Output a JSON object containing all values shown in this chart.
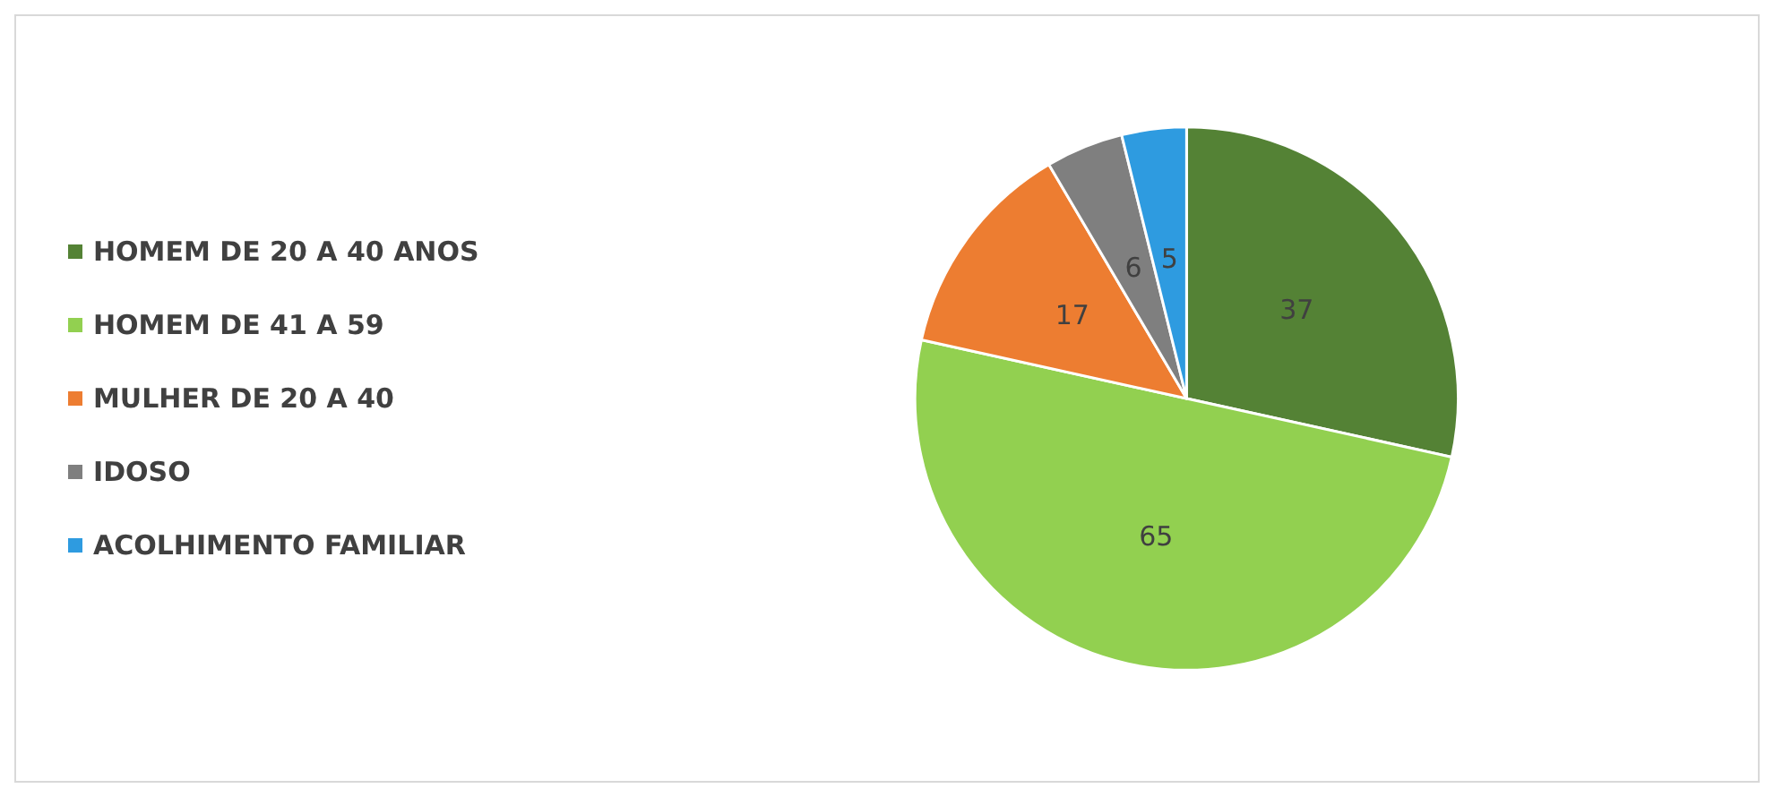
{
  "chart_data": {
    "type": "pie",
    "categories": [
      "HOMEM DE 20 A 40 ANOS",
      "HOMEM DE 41 A 59",
      "MULHER DE 20 A 40",
      "IDOSO",
      "ACOLHIMENTO FAMILIAR"
    ],
    "values": [
      37,
      65,
      17,
      6,
      5
    ],
    "colors": [
      "#548235",
      "#92d050",
      "#ed7d31",
      "#7f7f7f",
      "#2e9be0"
    ],
    "data_labels": true,
    "legend": "left"
  }
}
